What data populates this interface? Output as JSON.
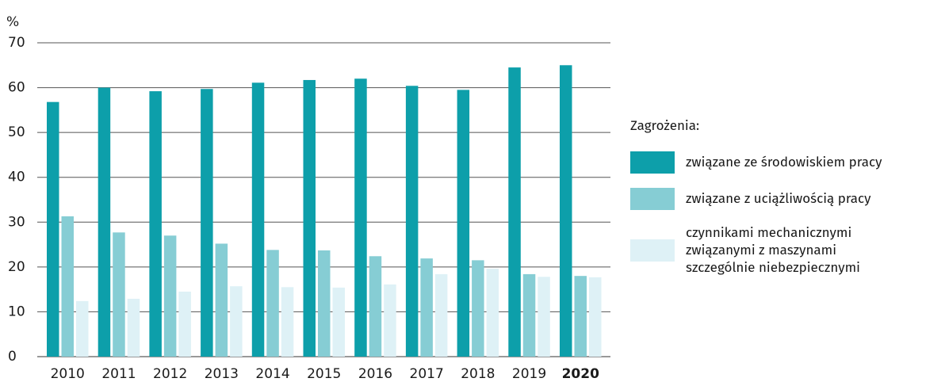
{
  "chart_data": {
    "type": "bar",
    "y_label": "%",
    "categories": [
      "2010",
      "2011",
      "2012",
      "2013",
      "2014",
      "2015",
      "2016",
      "2017",
      "2018",
      "2019",
      "2020"
    ],
    "highlight_category": "2020",
    "legend_title": "Zagrożenia:",
    "series": [
      {
        "name": "związane ze środowiskiem pracy",
        "color": "#0d9faa",
        "values": [
          56.8,
          60.0,
          59.2,
          59.7,
          61.1,
          61.7,
          62.0,
          60.4,
          59.5,
          64.5,
          65.0
        ]
      },
      {
        "name": "związane z uciążliwością pracy",
        "color": "#86cdd4",
        "values": [
          31.3,
          27.7,
          27.0,
          25.2,
          23.8,
          23.7,
          22.4,
          21.9,
          21.5,
          18.4,
          18.0
        ]
      },
      {
        "name": "czynnikami mechanicznymi\nzwiązanymi z maszynami\nszczególnie niebezpiecznymi",
        "color": "#def1f6",
        "values": [
          12.4,
          12.9,
          14.5,
          15.7,
          15.5,
          15.4,
          16.1,
          18.4,
          19.6,
          17.8,
          17.7
        ]
      }
    ],
    "ylim": [
      0,
      70
    ],
    "yticks": [
      0,
      10,
      20,
      30,
      40,
      50,
      60,
      70
    ],
    "grid": true,
    "legend": "right"
  }
}
